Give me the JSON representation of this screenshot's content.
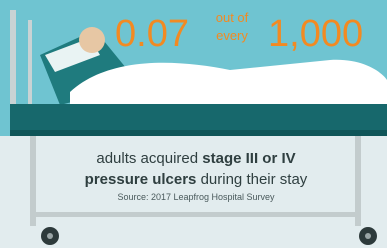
{
  "headline": {
    "number": "0.07",
    "connector_top": "out of",
    "connector_bottom": "every",
    "total": "1,000"
  },
  "caption": {
    "line1_plain": "adults acquired",
    "line1_bold": "stage III or IV",
    "line2_bold": "pressure ulcers",
    "line2_plain": "during their stay"
  },
  "source": "Source: 2017 Leapfrog Hospital Survey"
}
